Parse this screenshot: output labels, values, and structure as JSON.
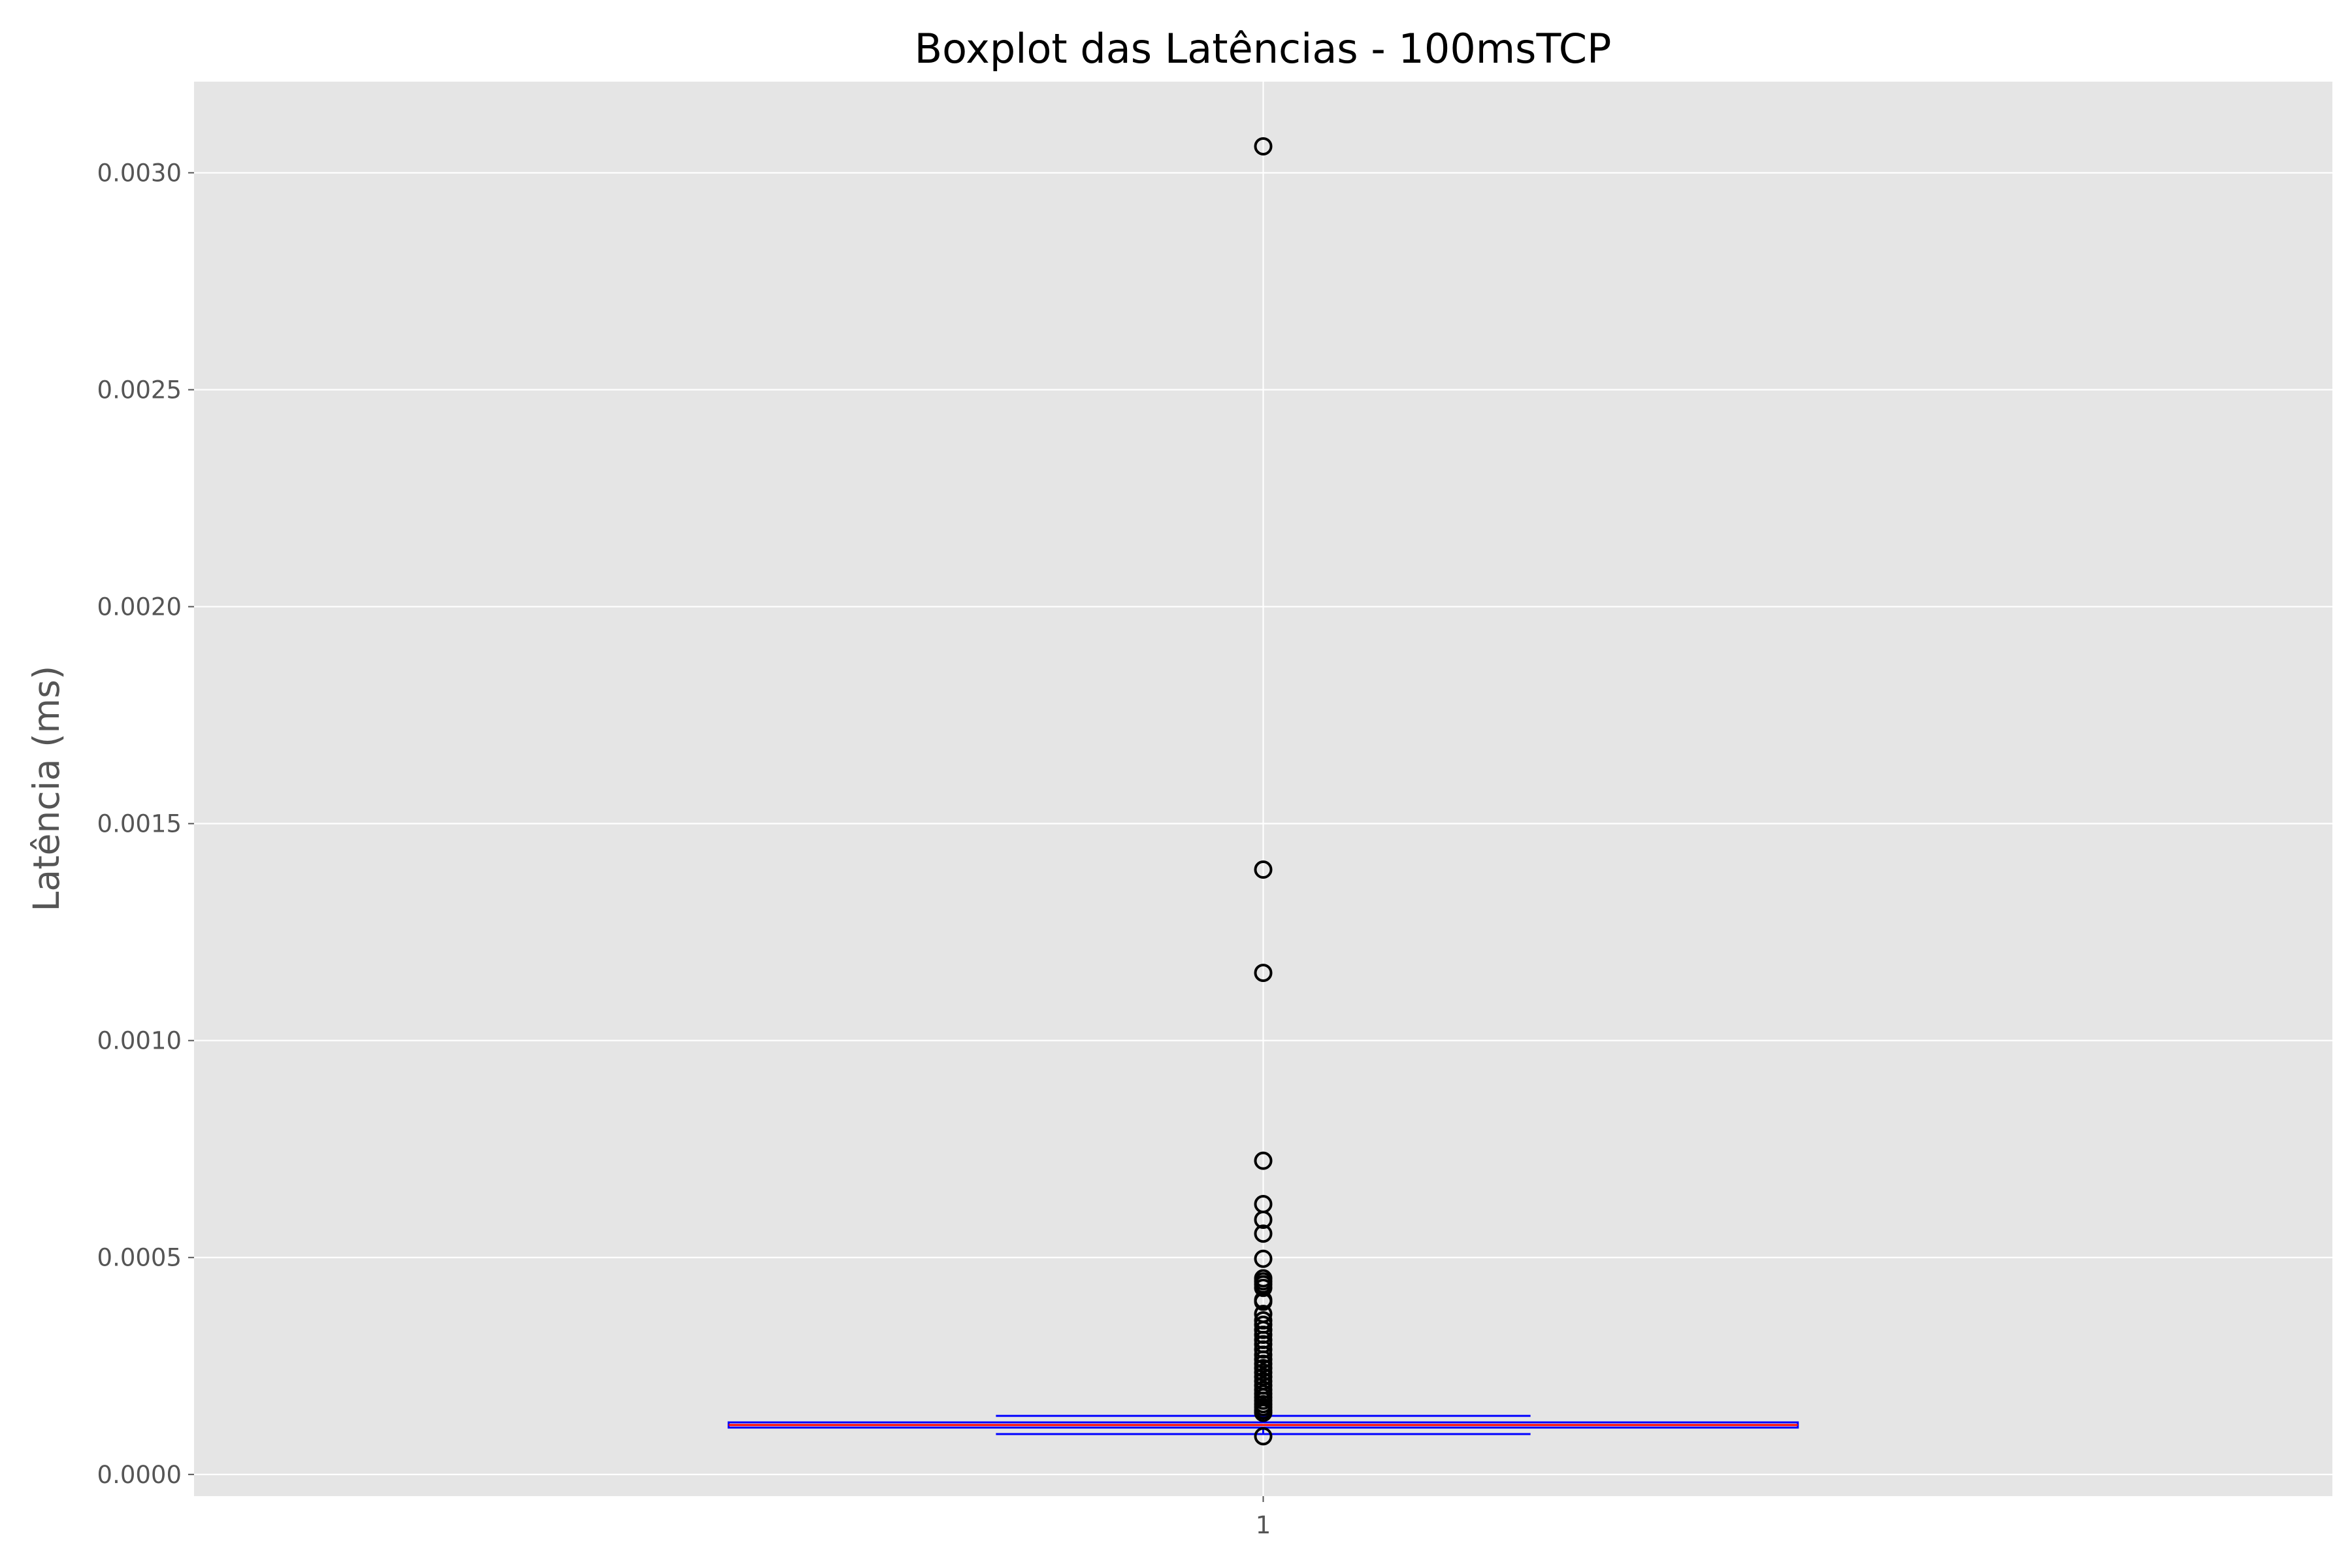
{
  "colors": {
    "plot_background": "#e5e5e5",
    "grid": "#ffffff",
    "box_edge": "#0000ff",
    "median": "#ff0000",
    "flier_edge": "#000000",
    "text": "#555555",
    "title": "#000000"
  },
  "chart_data": {
    "type": "boxplot",
    "title": "Boxplot das Latências - 100msTCP",
    "xlabel": "",
    "ylabel": "Latência (ms)",
    "categories": [
      "1"
    ],
    "yticks": [
      "0.0000",
      "0.0005",
      "0.0010",
      "0.0015",
      "0.0020",
      "0.0025",
      "0.0030"
    ],
    "ylim": [
      -5e-05,
      0.00321
    ],
    "xlim": [
      0.5,
      1.5
    ],
    "grid": true,
    "box": {
      "position": 1,
      "whisker_low": 9.3e-05,
      "q1": 0.000108,
      "median": 0.000114,
      "q3": 0.00012,
      "whisker_high": 0.000135
    },
    "fliers": [
      0.003061,
      0.001394,
      0.001156,
      0.000723,
      0.000623,
      0.000587,
      0.000555,
      0.000497,
      0.000452,
      0.000445,
      0.000438,
      0.00043,
      0.000402,
      0.000398,
      0.00037,
      0.000355,
      0.000345,
      0.000333,
      0.000322,
      0.00031,
      0.0003,
      0.000288,
      0.000276,
      0.000265,
      0.000255,
      0.000245,
      0.000235,
      0.000225,
      0.000215,
      0.000205,
      0.000195,
      0.000186,
      0.000178,
      0.00017,
      0.000162,
      0.000155,
      0.000148,
      0.000142,
      8.8e-05
    ]
  }
}
